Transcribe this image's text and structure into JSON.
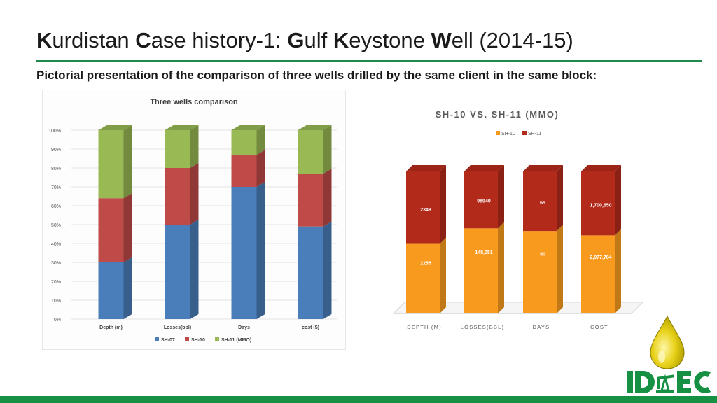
{
  "slide": {
    "title_parts": [
      {
        "text": "K",
        "bold": true
      },
      {
        "text": "urdistan ",
        "bold": false
      },
      {
        "text": "C",
        "bold": true
      },
      {
        "text": "ase history-1: ",
        "bold": false
      },
      {
        "text": "G",
        "bold": true
      },
      {
        "text": "ulf ",
        "bold": false
      },
      {
        "text": "K",
        "bold": true
      },
      {
        "text": "eystone ",
        "bold": false
      },
      {
        "text": "W",
        "bold": true
      },
      {
        "text": "ell (2014-15)",
        "bold": false
      }
    ],
    "subtitle": "Pictorial presentation of the comparison of three wells drilled by the same client in the same block:",
    "accent_color": "#1e8a4c"
  },
  "logo": {
    "text": "IDEC",
    "color": "#169043",
    "drop_color": "#e8d21a"
  },
  "chart_data": [
    {
      "type": "bar",
      "stacked": true,
      "percent": true,
      "title": "Three wells comparison",
      "categories": [
        "Depth (m)",
        "Losses(bbl)",
        "Days",
        "cost ($)"
      ],
      "series": [
        {
          "name": "SH-07",
          "color": "#4a7ebb",
          "values": [
            30,
            50,
            70,
            49
          ]
        },
        {
          "name": "SH-10",
          "color": "#be4b48",
          "values": [
            34,
            30,
            17,
            28
          ]
        },
        {
          "name": "SH-11 (MMO)",
          "color": "#98b954",
          "values": [
            36,
            20,
            13,
            23
          ]
        }
      ],
      "y_ticks": [
        "0%",
        "10%",
        "20%",
        "30%",
        "40%",
        "50%",
        "60%",
        "70%",
        "80%",
        "90%",
        "100%"
      ],
      "ylim": [
        0,
        100
      ],
      "legend_position": "bottom"
    },
    {
      "type": "bar",
      "stacked": true,
      "percent": true,
      "title": "SH-10    VS.  SH-11 (MMO)",
      "categories": [
        "DEPTH (M)",
        "LOSSES(BBL)",
        "DAYS",
        "COST"
      ],
      "series": [
        {
          "name": "SH-10",
          "color": "#f79a1e",
          "values": [
            2255,
            148051,
            90,
            2077784
          ],
          "labels": [
            "2255",
            "148,051",
            "90",
            "2,077,784"
          ]
        },
        {
          "name": "SH-11",
          "color": "#b22a1a",
          "values": [
            2348,
            98940,
            65,
            1700650
          ],
          "labels": [
            "2348",
            "98940",
            "65",
            "1,700,650"
          ]
        }
      ],
      "legend_position": "top",
      "grid": false
    }
  ]
}
